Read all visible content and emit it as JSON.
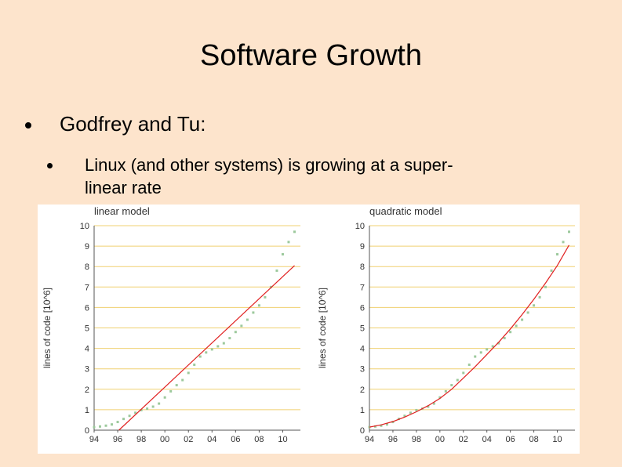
{
  "slide": {
    "title": "Software Growth",
    "bullet_1": "Godfrey and Tu:",
    "bullet_2": "Linux (and other systems) is growing at a super-linear rate"
  },
  "colors": {
    "background": "#fde4cc",
    "grid": "#f0d070",
    "data_points": "#9cc99c",
    "fit_line": "#e02020"
  },
  "chart_data": [
    {
      "type": "scatter",
      "title": "linear model",
      "ylabel": "lines of code [10^6]",
      "xlabel": "",
      "x_tick_labels": [
        "94",
        "96",
        "98",
        "00",
        "02",
        "04",
        "06",
        "08",
        "10"
      ],
      "x_ticks": [
        1994,
        1996,
        1998,
        2000,
        2002,
        2004,
        2006,
        2008,
        2010
      ],
      "y_ticks": [
        0,
        1,
        2,
        3,
        4,
        5,
        6,
        7,
        8,
        9,
        10
      ],
      "xlim": [
        1994,
        2011.5
      ],
      "ylim": [
        0,
        10
      ],
      "grid": true,
      "series": [
        {
          "kind": "points",
          "x": [
            1994.0,
            1994.5,
            1995.0,
            1995.5,
            1996.0,
            1996.5,
            1997.0,
            1997.5,
            1998.0,
            1998.5,
            1999.0,
            1999.5,
            2000.0,
            2000.5,
            2001.0,
            2001.5,
            2002.0,
            2002.5,
            2003.0,
            2003.5,
            2004.0,
            2004.5,
            2005.0,
            2005.5,
            2006.0,
            2006.5,
            2007.0,
            2007.5,
            2008.0,
            2008.5,
            2009.0,
            2009.5,
            2010.0,
            2010.5,
            2011.0
          ],
          "y": [
            0.15,
            0.18,
            0.22,
            0.28,
            0.4,
            0.55,
            0.7,
            0.85,
            0.98,
            1.05,
            1.15,
            1.3,
            1.6,
            1.9,
            2.2,
            2.45,
            2.8,
            3.2,
            3.6,
            3.8,
            3.95,
            4.1,
            4.25,
            4.5,
            4.8,
            5.1,
            5.4,
            5.75,
            6.1,
            6.5,
            7.0,
            7.8,
            8.6,
            9.2,
            9.7
          ]
        },
        {
          "kind": "line",
          "x": [
            1996.1,
            2011.0
          ],
          "y": [
            0.0,
            8.05
          ]
        }
      ]
    },
    {
      "type": "scatter",
      "title": "quadratic model",
      "ylabel": "lines of code [10^6]",
      "xlabel": "",
      "x_tick_labels": [
        "94",
        "96",
        "98",
        "00",
        "02",
        "04",
        "06",
        "08",
        "10"
      ],
      "x_ticks": [
        1994,
        1996,
        1998,
        2000,
        2002,
        2004,
        2006,
        2008,
        2010
      ],
      "y_ticks": [
        0,
        1,
        2,
        3,
        4,
        5,
        6,
        7,
        8,
        9,
        10
      ],
      "xlim": [
        1994,
        2011.5
      ],
      "ylim": [
        0,
        10
      ],
      "grid": true,
      "series": [
        {
          "kind": "points",
          "x": [
            1994.0,
            1994.5,
            1995.0,
            1995.5,
            1996.0,
            1996.5,
            1997.0,
            1997.5,
            1998.0,
            1998.5,
            1999.0,
            1999.5,
            2000.0,
            2000.5,
            2001.0,
            2001.5,
            2002.0,
            2002.5,
            2003.0,
            2003.5,
            2004.0,
            2004.5,
            2005.0,
            2005.5,
            2006.0,
            2006.5,
            2007.0,
            2007.5,
            2008.0,
            2008.5,
            2009.0,
            2009.5,
            2010.0,
            2010.5,
            2011.0
          ],
          "y": [
            0.15,
            0.18,
            0.22,
            0.28,
            0.4,
            0.55,
            0.7,
            0.85,
            0.98,
            1.05,
            1.15,
            1.3,
            1.6,
            1.9,
            2.2,
            2.45,
            2.8,
            3.2,
            3.6,
            3.8,
            3.95,
            4.1,
            4.25,
            4.5,
            4.8,
            5.1,
            5.4,
            5.75,
            6.1,
            6.5,
            7.0,
            7.8,
            8.6,
            9.2,
            9.7
          ]
        },
        {
          "kind": "line",
          "x": [
            1994.0,
            1995.0,
            1996.0,
            1997.0,
            1998.0,
            1999.0,
            2000.0,
            2001.0,
            2002.0,
            2003.0,
            2004.0,
            2005.0,
            2006.0,
            2007.0,
            2008.0,
            2009.0,
            2010.0,
            2011.0
          ],
          "y": [
            0.15,
            0.26,
            0.42,
            0.64,
            0.9,
            1.2,
            1.55,
            2.0,
            2.55,
            3.1,
            3.7,
            4.3,
            4.95,
            5.65,
            6.4,
            7.2,
            8.05,
            9.05
          ]
        }
      ]
    }
  ]
}
